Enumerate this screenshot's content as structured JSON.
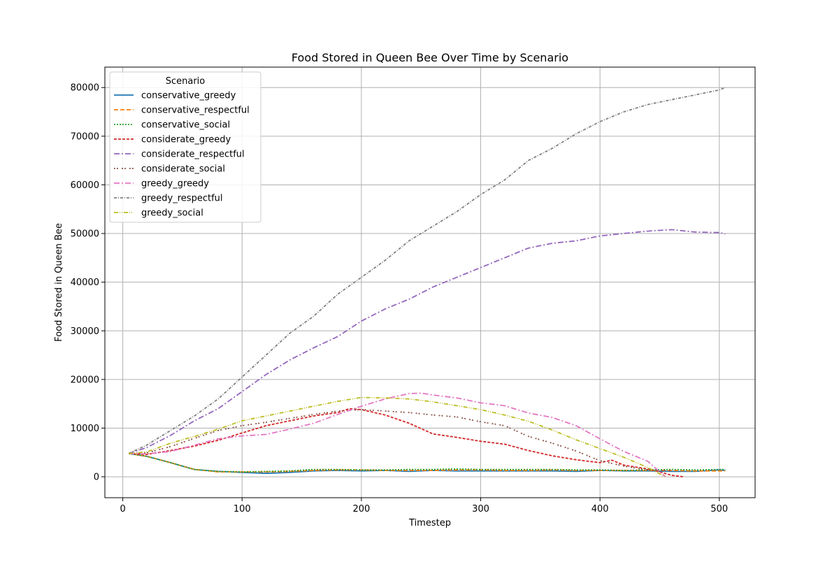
{
  "chart_data": {
    "type": "line",
    "title": "Food Stored in Queen Bee Over Time by Scenario",
    "xlabel": "Timestep",
    "ylabel": "Food Stored in Queen Bee",
    "xlim": [
      -15,
      530
    ],
    "ylim": [
      -4300,
      84200
    ],
    "xticks": [
      0,
      100,
      200,
      300,
      400,
      500
    ],
    "yticks": [
      0,
      10000,
      20000,
      30000,
      40000,
      50000,
      60000,
      70000,
      80000
    ],
    "grid": true,
    "legend": {
      "title": "Scenario",
      "placement": "top-left"
    },
    "series": [
      {
        "name": "conservative_greedy",
        "color": "#1f77b4",
        "dash": "solid",
        "x": [
          5,
          20,
          40,
          60,
          80,
          100,
          120,
          140,
          160,
          180,
          200,
          220,
          240,
          260,
          280,
          300,
          320,
          340,
          360,
          380,
          400,
          420,
          440,
          460,
          480,
          500,
          505
        ],
        "y": [
          4800,
          4200,
          2900,
          1500,
          1100,
          900,
          700,
          900,
          1200,
          1300,
          1200,
          1300,
          1100,
          1300,
          1200,
          1200,
          1200,
          1200,
          1200,
          1100,
          1300,
          1200,
          1200,
          1100,
          1100,
          1400,
          1300
        ]
      },
      {
        "name": "conservative_respectful",
        "color": "#ff7f0e",
        "dash": "6 3",
        "x": [
          5,
          20,
          40,
          60,
          80,
          100,
          120,
          140,
          160,
          180,
          200,
          220,
          240,
          260,
          280,
          300,
          320,
          340,
          360,
          380,
          400,
          420,
          440,
          460,
          480,
          500,
          505
        ],
        "y": [
          4800,
          4200,
          2900,
          1500,
          1000,
          1000,
          1000,
          1100,
          1300,
          1400,
          1400,
          1300,
          1300,
          1300,
          1400,
          1400,
          1300,
          1300,
          1400,
          1300,
          1300,
          1300,
          1300,
          1300,
          1200,
          1200,
          1200
        ]
      },
      {
        "name": "conservative_social",
        "color": "#2ca02c",
        "dash": "2 2",
        "x": [
          5,
          20,
          40,
          60,
          80,
          100,
          120,
          140,
          160,
          180,
          200,
          220,
          240,
          260,
          280,
          300,
          320,
          340,
          360,
          380,
          400,
          420,
          440,
          460,
          480,
          500,
          505
        ],
        "y": [
          4800,
          4200,
          2900,
          1500,
          1100,
          1000,
          1100,
          1200,
          1500,
          1500,
          1400,
          1400,
          1500,
          1500,
          1600,
          1500,
          1500,
          1500,
          1500,
          1400,
          1400,
          1300,
          1400,
          1500,
          1400,
          1500,
          1500
        ]
      },
      {
        "name": "considerate_greedy",
        "color": "#d62728",
        "dash": "4 2",
        "x": [
          5,
          20,
          40,
          60,
          80,
          100,
          120,
          140,
          160,
          180,
          190,
          200,
          220,
          240,
          260,
          280,
          300,
          320,
          340,
          360,
          380,
          400,
          410,
          420,
          440,
          450,
          460,
          470
        ],
        "y": [
          4800,
          4600,
          5400,
          6300,
          7500,
          9000,
          10500,
          11500,
          12500,
          13200,
          14000,
          13800,
          12700,
          11000,
          8800,
          8100,
          7300,
          6700,
          5400,
          4300,
          3500,
          2900,
          3400,
          2400,
          1600,
          1000,
          300,
          0
        ]
      },
      {
        "name": "considerate_respectful",
        "color": "#9467bd",
        "dash": "8 3 2 3",
        "x": [
          5,
          20,
          40,
          60,
          80,
          100,
          120,
          140,
          160,
          180,
          200,
          220,
          240,
          260,
          280,
          300,
          320,
          340,
          360,
          380,
          400,
          420,
          440,
          460,
          480,
          500,
          505
        ],
        "y": [
          4800,
          6000,
          8500,
          11500,
          14000,
          17500,
          21000,
          24000,
          26500,
          28800,
          32000,
          34500,
          36500,
          39000,
          41000,
          43000,
          45000,
          47000,
          48000,
          48500,
          49500,
          50000,
          50500,
          50800,
          50300,
          50200,
          49900
        ]
      },
      {
        "name": "considerate_social",
        "color": "#8c564b",
        "dash": "2 2 2 5",
        "x": [
          5,
          20,
          40,
          60,
          80,
          100,
          120,
          140,
          160,
          180,
          200,
          220,
          240,
          260,
          280,
          300,
          320,
          340,
          360,
          380,
          400,
          420,
          440,
          460
        ],
        "y": [
          4800,
          4900,
          6200,
          7900,
          9500,
          10500,
          11200,
          12000,
          12800,
          13500,
          13800,
          13500,
          13200,
          12700,
          12300,
          11300,
          10500,
          8300,
          6900,
          5300,
          3300,
          2200,
          1400,
          1200
        ]
      },
      {
        "name": "greedy_greedy",
        "color": "#e377c2",
        "dash": "8 3 2 3",
        "x": [
          5,
          20,
          40,
          60,
          80,
          100,
          120,
          140,
          160,
          180,
          200,
          220,
          240,
          250,
          260,
          280,
          300,
          320,
          340,
          360,
          380,
          400,
          420,
          440,
          450,
          455
        ],
        "y": [
          4800,
          4700,
          5200,
          6500,
          7800,
          8400,
          8700,
          9800,
          11000,
          12800,
          14500,
          16000,
          17100,
          17200,
          16800,
          16200,
          15200,
          14600,
          13100,
          12200,
          10500,
          7800,
          5200,
          3200,
          1000,
          0
        ]
      },
      {
        "name": "greedy_respectful",
        "color": "#7f7f7f",
        "dash": "4 2 1 2",
        "x": [
          5,
          20,
          40,
          60,
          80,
          100,
          120,
          140,
          160,
          180,
          200,
          220,
          240,
          260,
          280,
          300,
          320,
          340,
          360,
          380,
          400,
          420,
          440,
          460,
          480,
          500,
          505
        ],
        "y": [
          4800,
          6500,
          9500,
          12500,
          16000,
          20500,
          25000,
          29500,
          33000,
          37500,
          41000,
          44500,
          48500,
          51500,
          54500,
          58000,
          61000,
          65000,
          67500,
          70500,
          73000,
          75000,
          76500,
          77500,
          78500,
          79500,
          80000
        ]
      },
      {
        "name": "greedy_social",
        "color": "#bcbd22",
        "dash": "6 2 1 2 1 2",
        "x": [
          5,
          20,
          40,
          60,
          80,
          100,
          120,
          140,
          160,
          180,
          200,
          220,
          240,
          260,
          280,
          300,
          320,
          340,
          360,
          380,
          400,
          420,
          440,
          450,
          455
        ],
        "y": [
          4800,
          5100,
          6900,
          8300,
          9800,
          11500,
          12500,
          13500,
          14500,
          15500,
          16300,
          16200,
          16000,
          15400,
          14600,
          13800,
          12700,
          11400,
          9600,
          7600,
          5800,
          4000,
          1900,
          600,
          0
        ]
      }
    ]
  }
}
